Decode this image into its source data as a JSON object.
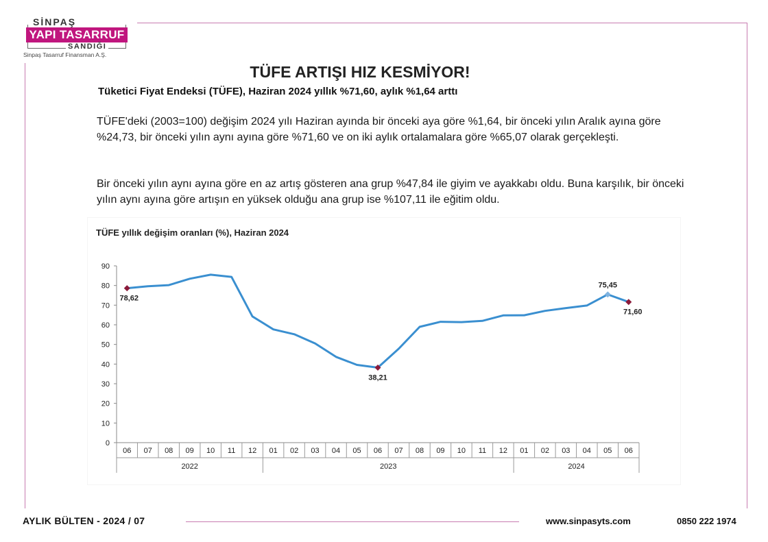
{
  "logo": {
    "top": "SİNPAŞ",
    "main": "YAPI TASARRUF",
    "sandik": "SANDIĞI",
    "sub": "Sinpaş Tasarruf Finansman A.Ş."
  },
  "header": {
    "title": "TÜFE ARTIŞI HIZ KESMİYOR!",
    "subtitle": "Tüketici Fiyat Endeksi (TÜFE),  Haziran 2024 yıllık %71,60, aylık %1,64 arttı"
  },
  "body": {
    "paragraph1": "TÜFE'deki (2003=100) değişim 2024 yılı Haziran ayında bir önceki aya göre %1,64, bir önceki yılın Aralık ayına göre %24,73, bir önceki yılın aynı ayına göre %71,60 ve on iki aylık ortalamalara göre %65,07 olarak gerçekleşti.",
    "paragraph2": "Bir önceki yılın aynı ayına göre en az artış gösteren ana grup %47,84 ile giyim ve ayakkabı oldu. Buna karşılık, bir önceki yılın aynı ayına göre artışın en yüksek olduğu ana grup ise %107,11 ile eğitim oldu."
  },
  "chart_data": {
    "type": "line",
    "title": "TÜFE yıllık değişim oranları (%), Haziran 2024",
    "xlabel": "",
    "ylabel": "",
    "ylim": [
      0,
      90
    ],
    "yticks": [
      0,
      10,
      20,
      30,
      40,
      50,
      60,
      70,
      80,
      90
    ],
    "categories": [
      "06",
      "07",
      "08",
      "09",
      "10",
      "11",
      "12",
      "01",
      "02",
      "03",
      "04",
      "05",
      "06",
      "07",
      "08",
      "09",
      "10",
      "11",
      "12",
      "01",
      "02",
      "03",
      "04",
      "05",
      "06"
    ],
    "years": [
      {
        "label": "2022",
        "start": 0,
        "end": 6
      },
      {
        "label": "2023",
        "start": 7,
        "end": 18
      },
      {
        "label": "2024",
        "start": 19,
        "end": 24
      }
    ],
    "series": [
      {
        "name": "TÜFE yıllık değişim",
        "color": "#3a8fd0",
        "values": [
          78.62,
          79.6,
          80.21,
          83.45,
          85.51,
          84.39,
          64.27,
          57.68,
          55.18,
          50.51,
          43.68,
          39.59,
          38.21,
          47.83,
          58.94,
          61.53,
          61.36,
          61.98,
          64.77,
          64.86,
          67.07,
          68.5,
          69.8,
          75.45,
          71.6
        ]
      }
    ],
    "annotations": [
      {
        "index": 0,
        "text": "78,62",
        "marker": "diamond",
        "color": "#8b1a3a",
        "pos": "below"
      },
      {
        "index": 12,
        "text": "38,21",
        "marker": "diamond",
        "color": "#8b1a3a",
        "pos": "below"
      },
      {
        "index": 23,
        "text": "75,45",
        "marker": "diamond",
        "color": "#7fb3e0",
        "pos": "above"
      },
      {
        "index": 24,
        "text": "71,60",
        "marker": "diamond",
        "color": "#8b1a3a",
        "pos": "below"
      }
    ]
  },
  "footer": {
    "bulletin": "AYLIK BÜLTEN  -  2024 / 07",
    "website": "www.sinpasyts.com",
    "phone": "0850 222 1974"
  }
}
